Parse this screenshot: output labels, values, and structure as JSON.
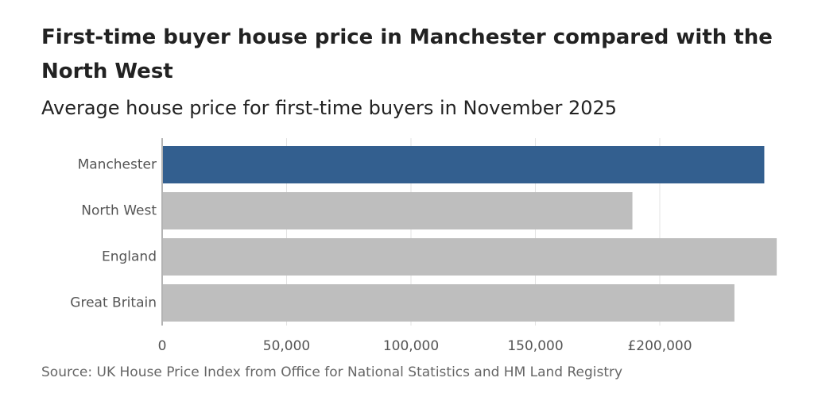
{
  "chart_data": {
    "type": "bar",
    "orientation": "horizontal",
    "title": "First-time buyer house price in Manchester compared with the North West",
    "subtitle": "Average house price for first-time buyers in November 2025",
    "source": "Source: UK House Price Index from Office for National Statistics and HM Land Registry",
    "categories": [
      "Manchester",
      "North West",
      "England",
      "Great Britain"
    ],
    "values": [
      242000,
      189000,
      247000,
      230000
    ],
    "highlight_index": 0,
    "colors": {
      "highlight": "#335f8f",
      "default": "#bebebe",
      "grid": "#e3e3e3",
      "axis": "#b3b3b3"
    },
    "xlim": [
      0,
      250000
    ],
    "ticks": [
      {
        "value": 0,
        "label": "0"
      },
      {
        "value": 50000,
        "label": "50,000"
      },
      {
        "value": 100000,
        "label": "100,000"
      },
      {
        "value": 150000,
        "label": "150,000"
      },
      {
        "value": 200000,
        "label": "£200,000"
      }
    ],
    "grid": true
  }
}
